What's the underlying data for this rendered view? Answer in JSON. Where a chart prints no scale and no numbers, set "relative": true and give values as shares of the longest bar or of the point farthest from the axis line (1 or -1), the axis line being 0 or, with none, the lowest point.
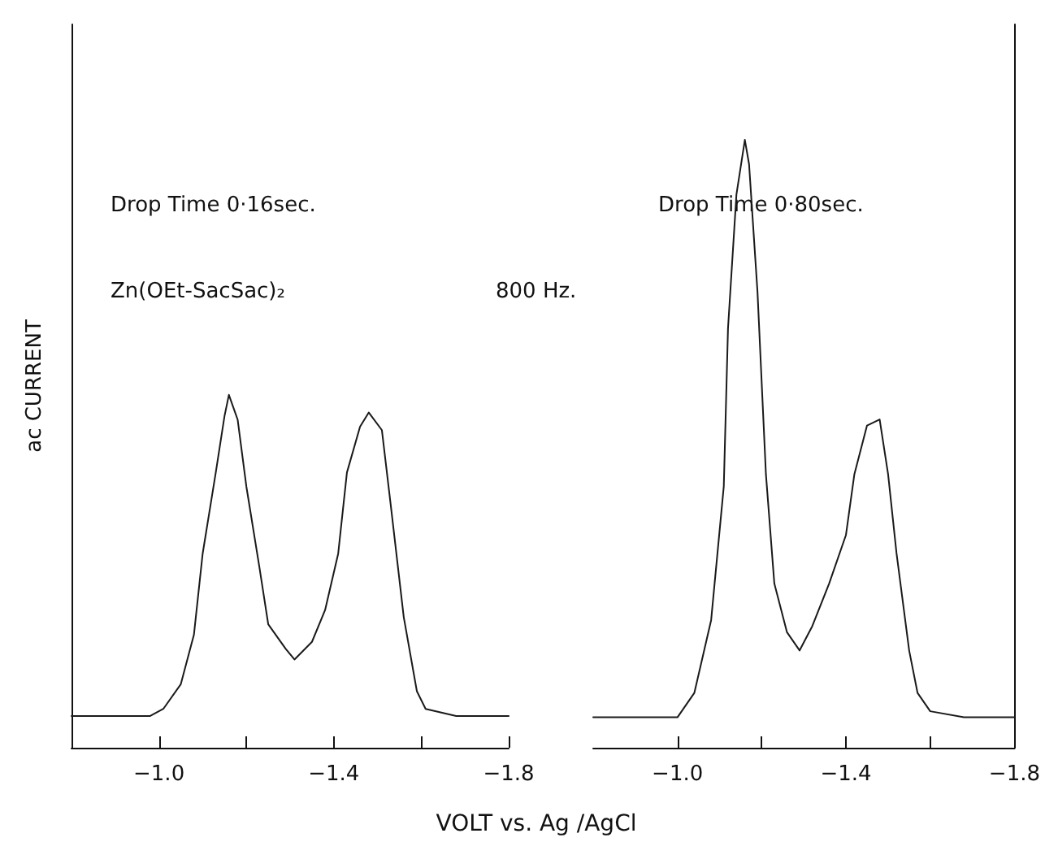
{
  "chart_data": [
    {
      "type": "line",
      "relative": true,
      "ylabel": "ac CURRENT",
      "xlabel": "VOLT vs. Ag /AgCl",
      "annotations": [
        "Drop Time 0·16sec.",
        "Zn(OEt-SacSac)₂"
      ],
      "xlim": [
        -0.8,
        -1.8
      ],
      "xticks": [
        {
          "value": -1.0,
          "label": "−1.0"
        },
        {
          "value": -1.2,
          "label": null
        },
        {
          "value": -1.4,
          "label": "−1.4"
        },
        {
          "value": -1.6,
          "label": null
        },
        {
          "value": -1.8,
          "label": "−1.8"
        }
      ],
      "tick_labels": "x",
      "grid": false,
      "legend": false,
      "marker": "none",
      "line_style": "solid",
      "series": [
        {
          "color": "#1a1a1a",
          "x": [
            -0.8,
            -0.98,
            -1.01,
            -1.05,
            -1.08,
            -1.1,
            -1.13,
            -1.15,
            -1.16,
            -1.18,
            -1.2,
            -1.23,
            -1.25,
            -1.29,
            -1.31,
            -1.35,
            -1.38,
            -1.41,
            -1.43,
            -1.46,
            -1.48,
            -1.51,
            -1.53,
            -1.56,
            -1.59,
            -1.61,
            -1.68,
            -1.8
          ],
          "values": [
            0.09,
            0.09,
            0.11,
            0.18,
            0.32,
            0.55,
            0.78,
            0.94,
            1.0,
            0.93,
            0.74,
            0.51,
            0.35,
            0.28,
            0.25,
            0.3,
            0.39,
            0.55,
            0.78,
            0.91,
            0.95,
            0.9,
            0.69,
            0.37,
            0.16,
            0.11,
            0.09,
            0.09
          ]
        }
      ]
    },
    {
      "type": "line",
      "relative": true,
      "annotations": [
        "Drop Time 0·80sec.",
        "800 Hz."
      ],
      "xlim": [
        -0.8,
        -1.8
      ],
      "xticks": [
        {
          "value": -1.0,
          "label": "−1.0"
        },
        {
          "value": -1.2,
          "label": null
        },
        {
          "value": -1.4,
          "label": "−1.4"
        },
        {
          "value": -1.6,
          "label": null
        },
        {
          "value": -1.8,
          "label": "−1.8"
        }
      ],
      "tick_labels": "x",
      "grid": false,
      "legend": false,
      "marker": "none",
      "line_style": "solid",
      "series": [
        {
          "color": "#1a1a1a",
          "x": [
            -0.8,
            -1.0,
            -1.04,
            -1.08,
            -1.11,
            -1.12,
            -1.14,
            -1.16,
            -1.17,
            -1.19,
            -1.21,
            -1.23,
            -1.26,
            -1.29,
            -1.32,
            -1.36,
            -1.4,
            -1.42,
            -1.45,
            -1.48,
            -1.5,
            -1.52,
            -1.55,
            -1.57,
            -1.6,
            -1.68,
            -1.8
          ],
          "values": [
            0.05,
            0.05,
            0.09,
            0.21,
            0.43,
            0.69,
            0.91,
            1.0,
            0.96,
            0.75,
            0.45,
            0.27,
            0.19,
            0.16,
            0.2,
            0.27,
            0.35,
            0.45,
            0.53,
            0.54,
            0.45,
            0.32,
            0.16,
            0.09,
            0.06,
            0.05,
            0.05
          ]
        }
      ]
    }
  ]
}
